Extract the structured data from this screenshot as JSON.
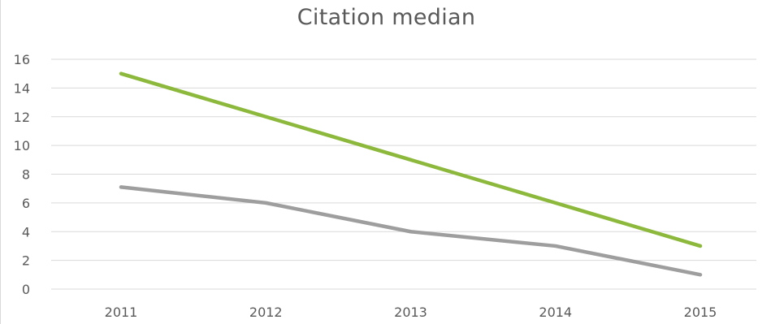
{
  "chart_data": {
    "type": "line",
    "title": "Citation median",
    "xlabel": "",
    "ylabel": "",
    "categories": [
      "2011",
      "2012",
      "2013",
      "2014",
      "2015"
    ],
    "ylim": [
      0,
      16
    ],
    "yticks": [
      "0",
      "2",
      "4",
      "6",
      "8",
      "10",
      "12",
      "14",
      "16"
    ],
    "grid": true,
    "legend": "none",
    "series": [
      {
        "values": [
          15,
          12,
          9,
          6,
          3
        ],
        "color": "#8cb83c"
      },
      {
        "values": [
          7.1,
          6,
          4,
          3,
          1
        ],
        "color": "#9e9e9e"
      }
    ]
  }
}
